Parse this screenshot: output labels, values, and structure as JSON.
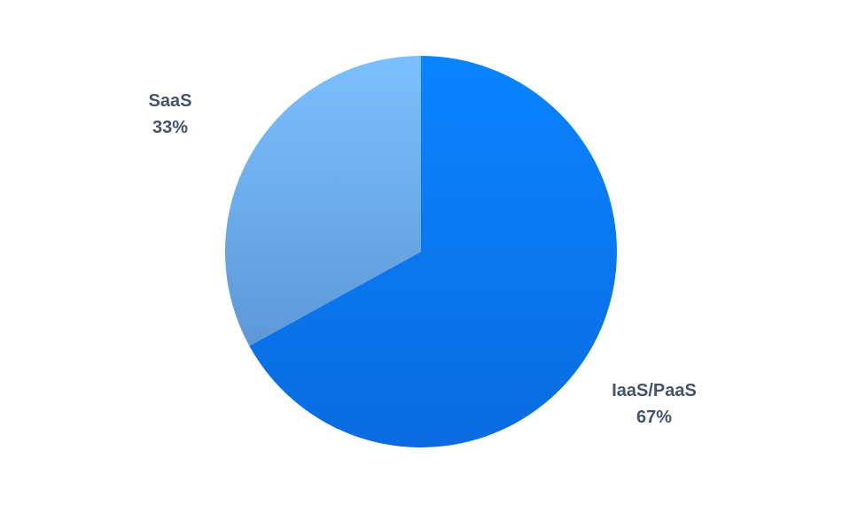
{
  "chart_data": {
    "type": "pie",
    "title": "",
    "slices": [
      {
        "label": "IaaS/PaaS",
        "value": 67,
        "value_label": "67%",
        "color_top": "#0A84FF",
        "color_bottom": "#0A6BE0"
      },
      {
        "label": "SaaS",
        "value": 33,
        "value_label": "33%",
        "color_top": "#7CC0FF",
        "color_bottom": "#5E98D6"
      }
    ],
    "start_angle_deg": 0,
    "direction": "clockwise",
    "label_color": "#44546A"
  }
}
